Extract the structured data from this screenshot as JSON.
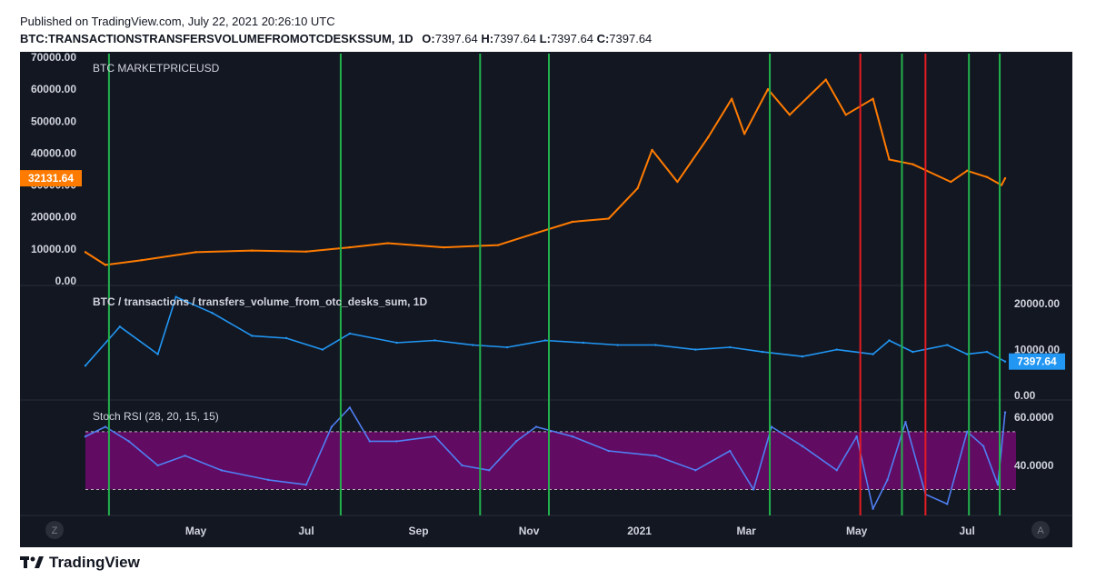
{
  "header": {
    "published": "Published on TradingView.com, July 22, 2021 20:26:10 UTC",
    "symbol": "BTC:TRANSACTIONSTRANSFERSVOLUMEFROMOTCDESKSSUM, 1D",
    "ohlc": [
      {
        "label": "O:",
        "value": "7397.64"
      },
      {
        "label": "H:",
        "value": "7397.64"
      },
      {
        "label": "L:",
        "value": "7397.64"
      },
      {
        "label": "C:",
        "value": "7397.64"
      }
    ]
  },
  "brand": "TradingView",
  "icons": {
    "zoom_left": "Z",
    "auto_right": "A"
  },
  "colors": {
    "background": "#131722",
    "price": "#ff7b00",
    "volume": "#2196f3",
    "rsi": "#4f7ff2",
    "rsi_band": "#6a0a6a",
    "buy_line": "#22b14c",
    "sell_line": "#e51c23"
  },
  "chart_data": [
    {
      "type": "line",
      "title": "BTC MARKETPRICEUSD",
      "y_ticks": [
        "70000.00",
        "60000.00",
        "50000.00",
        "40000.00",
        "30000.00",
        "20000.00",
        "10000.00",
        "0.00"
      ],
      "ylim": [
        0,
        70000
      ],
      "last_value_label": "32131.64",
      "series": [
        {
          "x": [
            "2020-03-01",
            "2020-03-12",
            "2020-04-01",
            "2020-05-01",
            "2020-06-01",
            "2020-07-01",
            "2020-07-25",
            "2020-08-15",
            "2020-09-15",
            "2020-10-15",
            "2020-11-05",
            "2020-11-25",
            "2020-12-15",
            "2020-12-31",
            "2021-01-08",
            "2021-01-22",
            "2021-02-08",
            "2021-02-21",
            "2021-02-28",
            "2021-03-13",
            "2021-03-25",
            "2021-04-14",
            "2021-04-25",
            "2021-05-10",
            "2021-05-19",
            "2021-06-01",
            "2021-06-22",
            "2021-07-01",
            "2021-07-12",
            "2021-07-20",
            "2021-07-22"
          ],
          "values": [
            9000,
            5000,
            6500,
            9000,
            9500,
            9200,
            10500,
            11800,
            10500,
            11200,
            15000,
            18500,
            19500,
            29000,
            41000,
            31000,
            45000,
            57000,
            46000,
            60000,
            52000,
            63000,
            52000,
            57000,
            38000,
            36500,
            31000,
            34500,
            32500,
            30000,
            32131.64
          ]
        }
      ]
    },
    {
      "type": "line",
      "title": "BTC / transactions / transfers_volume_from_otc_desks_sum, 1D",
      "y_ticks": [
        "20000.00",
        "10000.00",
        "0.00"
      ],
      "ylim": [
        0,
        23000
      ],
      "last_value_label": "7397.64",
      "series": [
        {
          "x": [
            "2020-03-01",
            "2020-03-20",
            "2020-04-10",
            "2020-04-20",
            "2020-05-10",
            "2020-06-01",
            "2020-06-20",
            "2020-07-10",
            "2020-07-25",
            "2020-08-20",
            "2020-09-10",
            "2020-10-01",
            "2020-10-20",
            "2020-11-10",
            "2020-12-01",
            "2020-12-20",
            "2021-01-10",
            "2021-02-01",
            "2021-02-20",
            "2021-03-10",
            "2021-04-01",
            "2021-04-20",
            "2021-05-10",
            "2021-05-19",
            "2021-06-01",
            "2021-06-20",
            "2021-07-01",
            "2021-07-12",
            "2021-07-22"
          ],
          "values": [
            6500,
            15000,
            9000,
            21500,
            18000,
            13000,
            12500,
            10000,
            13500,
            11500,
            12000,
            11000,
            10500,
            12000,
            11500,
            11000,
            11000,
            10000,
            10500,
            9500,
            8500,
            10000,
            9000,
            12000,
            9500,
            11000,
            9000,
            9500,
            7397.64
          ]
        }
      ]
    },
    {
      "type": "line",
      "title": "Stoch RSI (28, 20, 15, 15)",
      "y_ticks": [
        "60.0000",
        "40.0000"
      ],
      "ylim": [
        20,
        66
      ],
      "band": [
        30,
        54
      ],
      "series": [
        {
          "x": [
            "2020-03-01",
            "2020-03-12",
            "2020-03-25",
            "2020-04-10",
            "2020-04-25",
            "2020-05-15",
            "2020-06-10",
            "2020-07-01",
            "2020-07-15",
            "2020-07-25",
            "2020-08-05",
            "2020-08-20",
            "2020-09-10",
            "2020-09-25",
            "2020-10-10",
            "2020-10-25",
            "2020-11-05",
            "2020-11-25",
            "2020-12-15",
            "2021-01-10",
            "2021-02-01",
            "2021-02-20",
            "2021-03-05",
            "2021-03-15",
            "2021-04-01",
            "2021-04-20",
            "2021-05-01",
            "2021-05-10",
            "2021-05-18",
            "2021-05-28",
            "2021-06-08",
            "2021-06-20",
            "2021-07-01",
            "2021-07-10",
            "2021-07-18",
            "2021-07-22"
          ],
          "values": [
            52,
            56,
            50,
            40,
            44,
            38,
            34,
            32,
            56,
            64,
            50,
            50,
            52,
            40,
            38,
            50,
            56,
            52,
            46,
            44,
            38,
            46,
            30,
            56,
            48,
            38,
            52,
            22,
            34,
            58,
            28,
            24,
            54,
            48,
            32,
            62
          ]
        }
      ]
    }
  ],
  "x_axis": {
    "ticks": [
      "May",
      "Jul",
      "Sep",
      "Nov",
      "2021",
      "Mar",
      "May",
      "Jul"
    ]
  },
  "markers": {
    "buy": [
      "2020-03-14",
      "2020-07-20",
      "2020-10-05",
      "2020-11-12",
      "2021-03-14",
      "2021-05-26",
      "2021-07-02",
      "2021-07-19"
    ],
    "sell": [
      "2021-05-03",
      "2021-06-08"
    ]
  }
}
